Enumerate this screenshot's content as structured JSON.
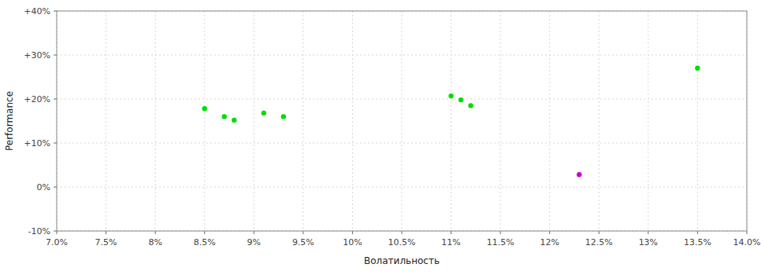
{
  "chart_data": {
    "type": "scatter",
    "xlabel": "Волатильность",
    "ylabel": "Performance",
    "xlim": [
      0.07,
      0.14
    ],
    "ylim": [
      -0.1,
      0.4
    ],
    "xticks": [
      {
        "value": 0.07,
        "label": "7.0%"
      },
      {
        "value": 0.075,
        "label": "7.5%"
      },
      {
        "value": 0.08,
        "label": "8%"
      },
      {
        "value": 0.085,
        "label": "8.5%"
      },
      {
        "value": 0.09,
        "label": "9%"
      },
      {
        "value": 0.095,
        "label": "9.5%"
      },
      {
        "value": 0.1,
        "label": "10%"
      },
      {
        "value": 0.105,
        "label": "10.5%"
      },
      {
        "value": 0.11,
        "label": "11%"
      },
      {
        "value": 0.115,
        "label": "11.5%"
      },
      {
        "value": 0.12,
        "label": "12%"
      },
      {
        "value": 0.125,
        "label": "12.5%"
      },
      {
        "value": 0.13,
        "label": "13%"
      },
      {
        "value": 0.135,
        "label": "13.5%"
      },
      {
        "value": 0.14,
        "label": "14.0%"
      }
    ],
    "yticks": [
      {
        "value": -0.1,
        "label": "-10%"
      },
      {
        "value": 0.0,
        "label": "0%"
      },
      {
        "value": 0.1,
        "label": "+10%"
      },
      {
        "value": 0.2,
        "label": "+20%"
      },
      {
        "value": 0.3,
        "label": "+30%"
      },
      {
        "value": 0.4,
        "label": "+40%"
      }
    ],
    "grid": true,
    "series": [
      {
        "color": "#00dd00",
        "x": [
          0.085,
          0.087,
          0.088,
          0.091,
          0.093,
          0.11,
          0.111,
          0.112,
          0.135
        ],
        "values": [
          0.178,
          0.16,
          0.152,
          0.168,
          0.16,
          0.207,
          0.198,
          0.185,
          0.27
        ]
      },
      {
        "color": "#cc00cc",
        "x": [
          0.123
        ],
        "values": [
          0.028
        ]
      }
    ]
  }
}
